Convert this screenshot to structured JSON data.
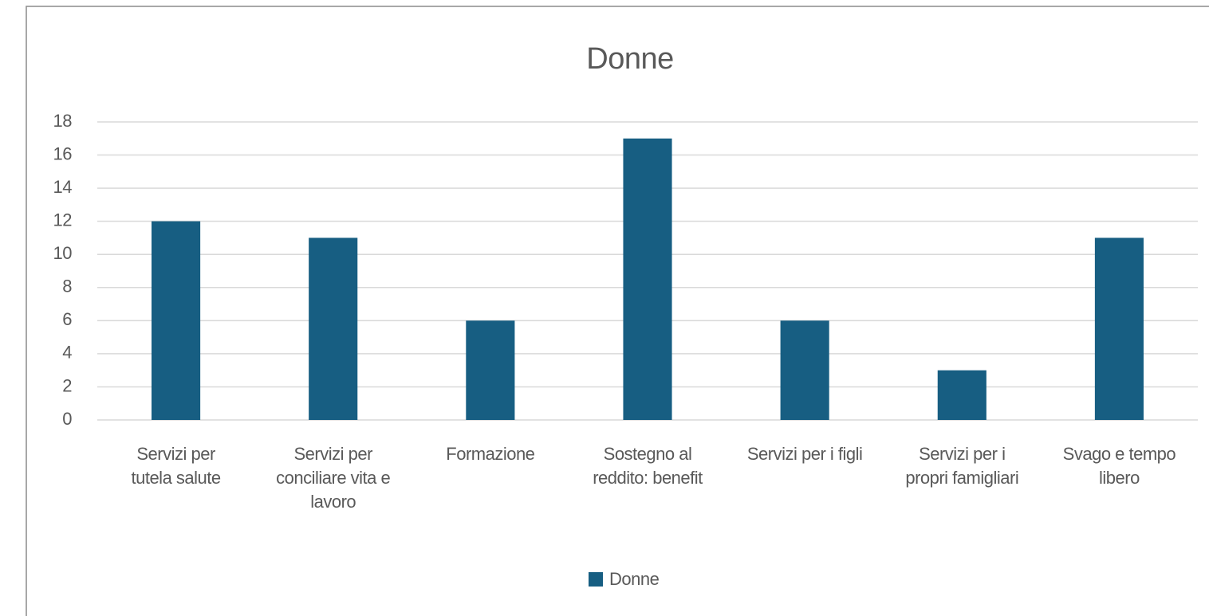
{
  "chart_data": {
    "type": "bar",
    "title": "Donne",
    "categories": [
      "Servizi per tutela salute",
      "Servizi per conciliare vita e lavoro",
      "Formazione",
      "Sostegno al reddito: benefit",
      "Servizi per i figli",
      "Servizi per i propri famigliari",
      "Svago e tempo libero"
    ],
    "series": [
      {
        "name": "Donne",
        "color": "#175e82",
        "values": [
          12,
          11,
          6,
          17,
          6,
          3,
          11
        ]
      }
    ],
    "ylim": [
      0,
      18
    ],
    "yticks": [
      0,
      2,
      4,
      6,
      8,
      10,
      12,
      14,
      16,
      18
    ],
    "grid": true,
    "legend": "bottom"
  }
}
